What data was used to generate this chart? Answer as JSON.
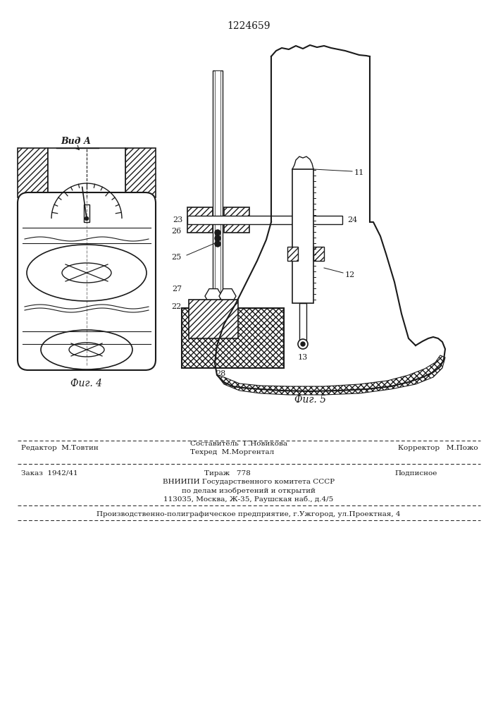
{
  "patent_number": "1224659",
  "fig4_label": "Фиг. 4",
  "fig5_label": "Фиг. 5",
  "vid_a_label": "Вид А",
  "footer_line1_left": "Редактор  М.Товтин",
  "footer_line1_center_1": "Составитель  Г.Новикова",
  "footer_line1_center_2": "Техред  М.Моргентал",
  "footer_line1_right": "Корректор   М.Пожо",
  "footer_line2_left": "Заказ  1942/41",
  "footer_line2_center": "Тираж   778",
  "footer_line2_right": "Подписное",
  "footer_line3": "ВНИИПИ Государственного комитета СССР",
  "footer_line4": "по делам изобретений и открытий",
  "footer_line5": "113035, Москва, Ж-35, Раушская наб., д.4/5",
  "footer_line6": "Производственно-полиграфическое предприятие, г.Ужгород, ул.Проектная, 4",
  "bg_color": "#ffffff",
  "line_color": "#1a1a1a"
}
